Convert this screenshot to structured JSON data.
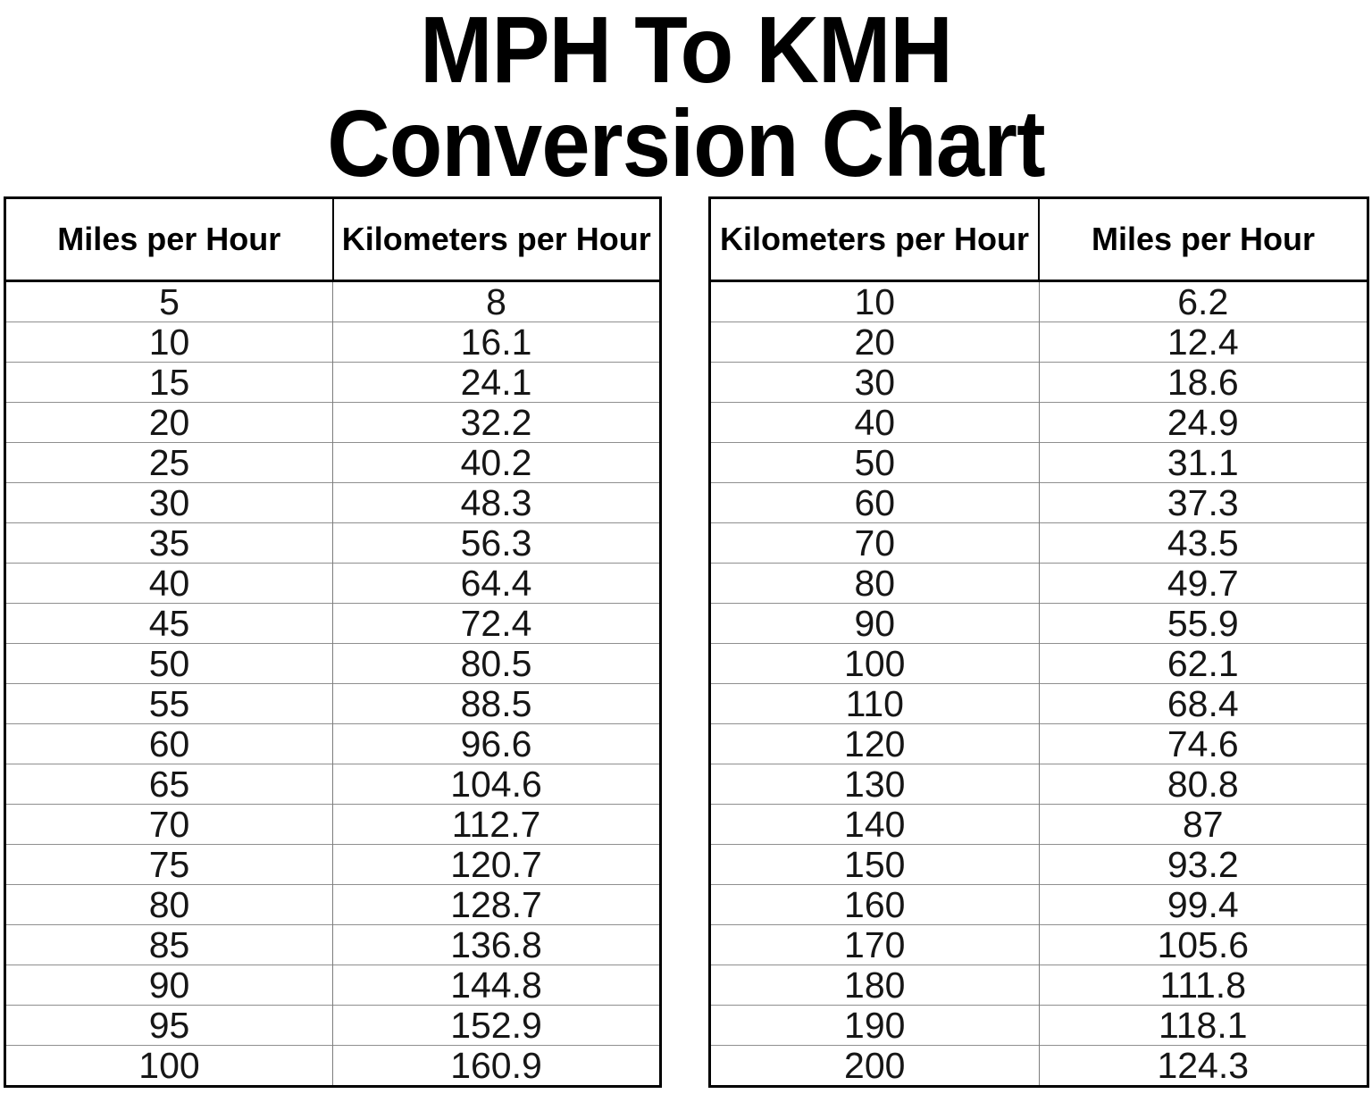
{
  "title": {
    "line1": "MPH To KMH",
    "line2": "Conversion Chart"
  },
  "colors": {
    "background": "#ffffff",
    "text": "#000000",
    "table_border": "#000000",
    "row_line": "#8f8f8f"
  },
  "left_table": {
    "headers": [
      "Miles per Hour",
      "Kilometers per Hour"
    ],
    "rows": [
      [
        "5",
        "8"
      ],
      [
        "10",
        "16.1"
      ],
      [
        "15",
        "24.1"
      ],
      [
        "20",
        "32.2"
      ],
      [
        "25",
        "40.2"
      ],
      [
        "30",
        "48.3"
      ],
      [
        "35",
        "56.3"
      ],
      [
        "40",
        "64.4"
      ],
      [
        "45",
        "72.4"
      ],
      [
        "50",
        "80.5"
      ],
      [
        "55",
        "88.5"
      ],
      [
        "60",
        "96.6"
      ],
      [
        "65",
        "104.6"
      ],
      [
        "70",
        "112.7"
      ],
      [
        "75",
        "120.7"
      ],
      [
        "80",
        "128.7"
      ],
      [
        "85",
        "136.8"
      ],
      [
        "90",
        "144.8"
      ],
      [
        "95",
        "152.9"
      ],
      [
        "100",
        "160.9"
      ]
    ]
  },
  "right_table": {
    "headers": [
      "Kilometers per Hour",
      "Miles per Hour"
    ],
    "rows": [
      [
        "10",
        "6.2"
      ],
      [
        "20",
        "12.4"
      ],
      [
        "30",
        "18.6"
      ],
      [
        "40",
        "24.9"
      ],
      [
        "50",
        "31.1"
      ],
      [
        "60",
        "37.3"
      ],
      [
        "70",
        "43.5"
      ],
      [
        "80",
        "49.7"
      ],
      [
        "90",
        "55.9"
      ],
      [
        "100",
        "62.1"
      ],
      [
        "110",
        "68.4"
      ],
      [
        "120",
        "74.6"
      ],
      [
        "130",
        "80.8"
      ],
      [
        "140",
        "87"
      ],
      [
        "150",
        "93.2"
      ],
      [
        "160",
        "99.4"
      ],
      [
        "170",
        "105.6"
      ],
      [
        "180",
        "111.8"
      ],
      [
        "190",
        "118.1"
      ],
      [
        "200",
        "124.3"
      ]
    ]
  },
  "chart_data": {
    "type": "table",
    "title": "MPH To KMH Conversion Chart",
    "tables": [
      {
        "columns": [
          "Miles per Hour",
          "Kilometers per Hour"
        ],
        "mph": [
          5,
          10,
          15,
          20,
          25,
          30,
          35,
          40,
          45,
          50,
          55,
          60,
          65,
          70,
          75,
          80,
          85,
          90,
          95,
          100
        ],
        "kmh": [
          8,
          16.1,
          24.1,
          32.2,
          40.2,
          48.3,
          56.3,
          64.4,
          72.4,
          80.5,
          88.5,
          96.6,
          104.6,
          112.7,
          120.7,
          128.7,
          136.8,
          144.8,
          152.9,
          160.9
        ]
      },
      {
        "columns": [
          "Kilometers per Hour",
          "Miles per Hour"
        ],
        "kmh": [
          10,
          20,
          30,
          40,
          50,
          60,
          70,
          80,
          90,
          100,
          110,
          120,
          130,
          140,
          150,
          160,
          170,
          180,
          190,
          200
        ],
        "mph": [
          6.2,
          12.4,
          18.6,
          24.9,
          31.1,
          37.3,
          43.5,
          49.7,
          55.9,
          62.1,
          68.4,
          74.6,
          80.8,
          87,
          93.2,
          99.4,
          105.6,
          111.8,
          118.1,
          124.3
        ]
      }
    ]
  }
}
